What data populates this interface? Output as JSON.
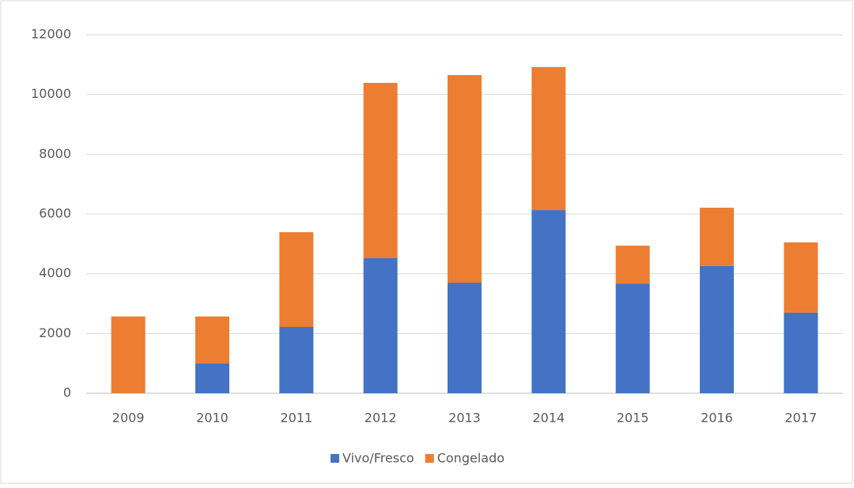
{
  "chart_data": {
    "type": "stacked_bar",
    "categories": [
      "2009",
      "2010",
      "2011",
      "2012",
      "2013",
      "2014",
      "2015",
      "2016",
      "2017"
    ],
    "series": [
      {
        "name": "Vivo/Fresco",
        "color": "#4472c4",
        "values": [
          0,
          1000,
          2220,
          4520,
          3700,
          6130,
          3670,
          4260,
          2700
        ]
      },
      {
        "name": "Congelado",
        "color": "#ed7d31",
        "values": [
          2570,
          1570,
          3170,
          5870,
          6950,
          4790,
          1270,
          1950,
          2350
        ]
      }
    ],
    "ylim": [
      0,
      12000
    ],
    "yticks": [
      0,
      2000,
      4000,
      6000,
      8000,
      10000,
      12000
    ],
    "grid": true,
    "legend": "bottom"
  }
}
